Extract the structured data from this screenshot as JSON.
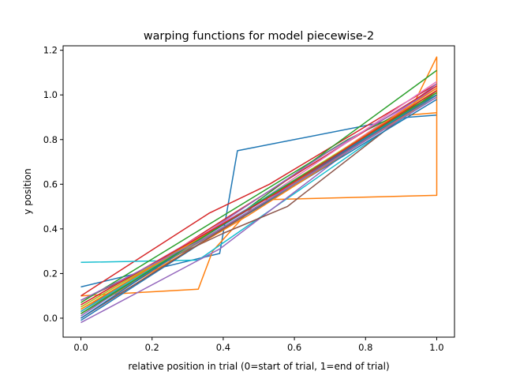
{
  "chart_data": {
    "type": "line",
    "title": "warping functions for model  piecewise-2",
    "xlabel": "relative position in trial (0=start of trial, 1=end of trial)",
    "ylabel": "y position",
    "xlim": [
      -0.05,
      1.05
    ],
    "ylim": [
      -0.085,
      1.22
    ],
    "xticks": [
      0.0,
      0.2,
      0.4,
      0.6,
      0.8,
      1.0
    ],
    "xtick_labels": [
      "0.0",
      "0.2",
      "0.4",
      "0.6",
      "0.8",
      "1.0"
    ],
    "yticks": [
      0.0,
      0.2,
      0.4,
      0.6,
      0.8,
      1.0,
      1.2
    ],
    "ytick_labels": [
      "0.0",
      "0.2",
      "0.4",
      "0.6",
      "0.8",
      "1.0",
      "1.2"
    ],
    "grid": false,
    "legend": "none",
    "series": [
      {
        "color": "#1f77b4",
        "points": [
          [
            0.0,
            0.14
          ],
          [
            0.39,
            0.29
          ],
          [
            0.44,
            0.75
          ],
          [
            0.92,
            0.9
          ],
          [
            1.0,
            0.91
          ]
        ]
      },
      {
        "color": "#ff7f0e",
        "points": [
          [
            0.0,
            0.1
          ],
          [
            0.33,
            0.13
          ],
          [
            0.37,
            0.3
          ],
          [
            0.5,
            0.53
          ],
          [
            1.0,
            0.55
          ],
          [
            1.0,
            1.17
          ],
          [
            0.92,
            0.91
          ],
          [
            1.0,
            0.92
          ]
        ]
      },
      {
        "color": "#d62728",
        "points": [
          [
            0.0,
            0.1
          ],
          [
            0.36,
            0.47
          ],
          [
            0.53,
            0.6
          ],
          [
            1.0,
            1.05
          ]
        ]
      },
      {
        "color": "#2ca02c",
        "points": [
          [
            0.0,
            0.05
          ],
          [
            0.45,
            0.47
          ],
          [
            1.0,
            1.11
          ]
        ]
      },
      {
        "color": "#17becf",
        "points": [
          [
            0.0,
            0.25
          ],
          [
            0.33,
            0.26
          ],
          [
            1.0,
            1.0
          ]
        ]
      },
      {
        "color": "#9467bd",
        "points": [
          [
            0.0,
            -0.02
          ],
          [
            0.39,
            0.31
          ],
          [
            1.0,
            1.05
          ]
        ]
      },
      {
        "color": "#8c564b",
        "points": [
          [
            0.0,
            0.08
          ],
          [
            0.4,
            0.38
          ],
          [
            0.58,
            0.5
          ],
          [
            1.0,
            1.02
          ]
        ]
      },
      {
        "color": "#e377c2",
        "points": [
          [
            0.0,
            0.0
          ],
          [
            0.5,
            0.5
          ],
          [
            1.0,
            1.04
          ]
        ]
      },
      {
        "color": "#7f7f7f",
        "points": [
          [
            0.0,
            0.03
          ],
          [
            0.45,
            0.45
          ],
          [
            1.0,
            1.0
          ]
        ]
      },
      {
        "color": "#bcbd22",
        "points": [
          [
            0.0,
            0.04
          ],
          [
            0.5,
            0.5
          ],
          [
            1.0,
            1.02
          ]
        ]
      },
      {
        "color": "#1f77b4",
        "points": [
          [
            0.0,
            -0.01
          ],
          [
            0.4,
            0.4
          ],
          [
            1.0,
            0.98
          ]
        ]
      },
      {
        "color": "#ff7f0e",
        "points": [
          [
            0.0,
            0.02
          ],
          [
            0.47,
            0.46
          ],
          [
            1.0,
            1.0
          ]
        ]
      },
      {
        "color": "#2ca02c",
        "points": [
          [
            0.0,
            0.07
          ],
          [
            0.75,
            0.8
          ],
          [
            1.0,
            1.0
          ]
        ]
      },
      {
        "color": "#d62728",
        "points": [
          [
            0.0,
            0.03
          ],
          [
            0.4,
            0.44
          ],
          [
            1.0,
            1.04
          ]
        ]
      },
      {
        "color": "#9467bd",
        "points": [
          [
            0.0,
            0.01
          ],
          [
            0.69,
            0.74
          ],
          [
            1.0,
            1.03
          ]
        ]
      },
      {
        "color": "#8c564b",
        "points": [
          [
            0.0,
            0.0
          ],
          [
            0.45,
            0.45
          ],
          [
            1.0,
            1.01
          ]
        ]
      },
      {
        "color": "#e377c2",
        "points": [
          [
            0.0,
            0.06
          ],
          [
            0.5,
            0.52
          ],
          [
            1.0,
            1.06
          ]
        ]
      },
      {
        "color": "#7f7f7f",
        "points": [
          [
            0.0,
            0.02
          ],
          [
            0.6,
            0.6
          ],
          [
            1.0,
            0.99
          ]
        ]
      },
      {
        "color": "#bcbd22",
        "points": [
          [
            0.0,
            0.05
          ],
          [
            0.45,
            0.47
          ],
          [
            1.0,
            1.02
          ]
        ]
      },
      {
        "color": "#17becf",
        "points": [
          [
            0.0,
            0.03
          ],
          [
            0.55,
            0.57
          ],
          [
            1.0,
            1.0
          ]
        ]
      },
      {
        "color": "#1f77b4",
        "points": [
          [
            0.0,
            0.0
          ],
          [
            0.3,
            0.32
          ],
          [
            1.0,
            1.0
          ]
        ]
      },
      {
        "color": "#ff7f0e",
        "points": [
          [
            0.0,
            0.04
          ],
          [
            0.62,
            0.63
          ],
          [
            1.0,
            1.03
          ]
        ]
      },
      {
        "color": "#2ca02c",
        "points": [
          [
            0.0,
            0.02
          ],
          [
            0.4,
            0.42
          ],
          [
            1.0,
            1.01
          ]
        ]
      },
      {
        "color": "#d62728",
        "points": [
          [
            0.0,
            0.06
          ],
          [
            0.55,
            0.56
          ],
          [
            1.0,
            1.02
          ]
        ]
      },
      {
        "color": "#9467bd",
        "points": [
          [
            0.0,
            0.08
          ],
          [
            0.35,
            0.36
          ],
          [
            1.0,
            0.99
          ]
        ]
      }
    ]
  }
}
